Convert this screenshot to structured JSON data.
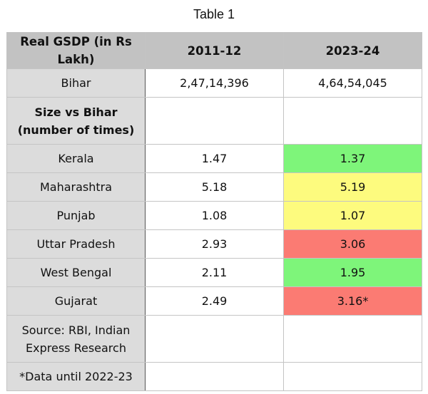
{
  "title": "Table 1",
  "colors": {
    "header": "#c2c2c2",
    "label_col": "#dcdcdc",
    "green": "#7ef57a",
    "yellow": "#fdfb7e",
    "red": "#fb7b73"
  },
  "chart_data": {
    "type": "table",
    "columns": [
      "Real GSDP (in Rs Lakh)",
      "2011-12",
      "2023-24"
    ],
    "rows": [
      {
        "label": "Bihar",
        "v1": "2,47,14,396",
        "v2": "4,64,54,045",
        "fill": "",
        "bold": false,
        "tall": false
      },
      {
        "label": "Size vs Bihar (number of times)",
        "v1": "",
        "v2": "",
        "fill": "",
        "bold": true,
        "tall": true
      },
      {
        "label": "Kerala",
        "v1": "1.47",
        "v2": "1.37",
        "fill": "green"
      },
      {
        "label": "Maharashtra",
        "v1": "5.18",
        "v2": "5.19",
        "fill": "yellow"
      },
      {
        "label": "Punjab",
        "v1": "1.08",
        "v2": "1.07",
        "fill": "yellow"
      },
      {
        "label": "Uttar Pradesh",
        "v1": "2.93",
        "v2": "3.06",
        "fill": "red"
      },
      {
        "label": "West Bengal",
        "v1": "2.11",
        "v2": "1.95",
        "fill": "green"
      },
      {
        "label": "Gujarat",
        "v1": "2.49",
        "v2": "3.16*",
        "fill": "red"
      },
      {
        "label": "Source: RBI, Indian Express Research",
        "v1": "",
        "v2": "",
        "fill": "",
        "tall": true
      },
      {
        "label": "*Data until 2022-23",
        "v1": "",
        "v2": "",
        "fill": ""
      }
    ]
  }
}
